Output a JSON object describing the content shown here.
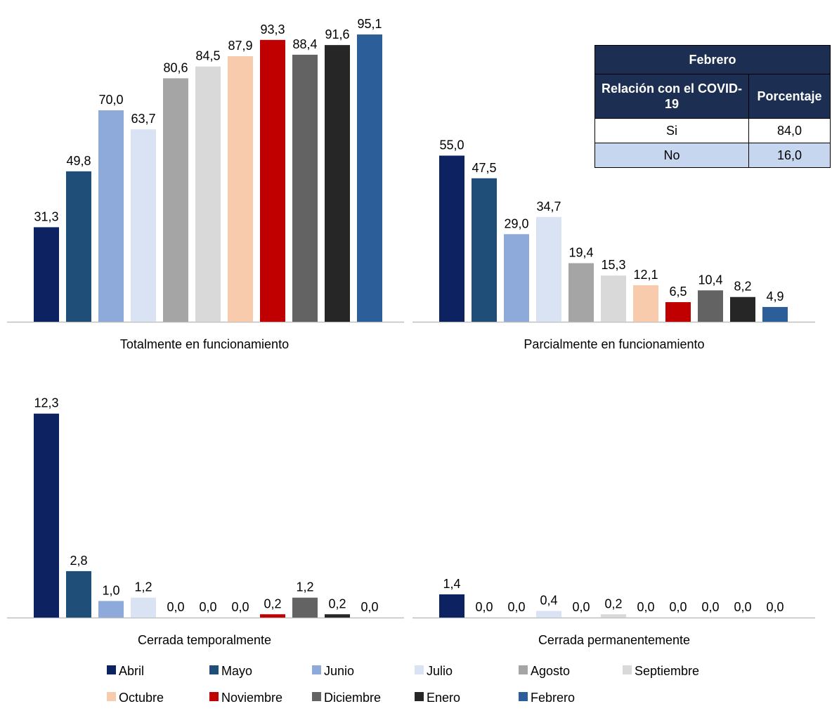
{
  "chart_data": {
    "type": "bar",
    "months": [
      "Abril",
      "Mayo",
      "Junio",
      "Julio",
      "Agosto",
      "Septiembre",
      "Octubre",
      "Noviembre",
      "Diciembre",
      "Enero",
      "Febrero"
    ],
    "colors": [
      "#0d2260",
      "#1f4e79",
      "#8eaadb",
      "#dae3f3",
      "#a5a5a5",
      "#d9d9d9",
      "#f8cbad",
      "#c00000",
      "#636363",
      "#262626",
      "#2c5f99"
    ],
    "panels": [
      {
        "label": "Totalmente en funcionamiento",
        "values": [
          31.3,
          49.8,
          70.0,
          63.7,
          80.6,
          84.5,
          87.9,
          93.3,
          88.4,
          91.6,
          95.1
        ],
        "value_labels": [
          "31,3",
          "49,8",
          "70,0",
          "63,7",
          "80,6",
          "84,5",
          "87,9",
          "93,3",
          "88,4",
          "91,6",
          "95,1"
        ]
      },
      {
        "label": "Parcialmente en funcionamiento",
        "values": [
          55.0,
          47.5,
          29.0,
          34.7,
          19.4,
          15.3,
          12.1,
          6.5,
          10.4,
          8.2,
          4.9
        ],
        "value_labels": [
          "55,0",
          "47,5",
          "29,0",
          "34,7",
          "19,4",
          "15,3",
          "12,1",
          "6,5",
          "10,4",
          "8,2",
          "4,9"
        ]
      },
      {
        "label": "Cerrada temporalmente",
        "values": [
          12.3,
          2.8,
          1.0,
          1.2,
          0.0,
          0.0,
          0.0,
          0.2,
          1.2,
          0.2,
          0.0
        ],
        "value_labels": [
          "12,3",
          "2,8",
          "1,0",
          "1,2",
          "0,0",
          "0,0",
          "0,0",
          "0,2",
          "1,2",
          "0,2",
          "0,0"
        ]
      },
      {
        "label": "Cerrada permanentemente",
        "values": [
          1.4,
          0.0,
          0.0,
          0.4,
          0.0,
          0.2,
          0.0,
          0.0,
          0.0,
          0.0,
          0.0
        ],
        "value_labels": [
          "1,4",
          "0,0",
          "0,0",
          "0,4",
          "0,0",
          "0,2",
          "0,0",
          "0,0",
          "0,0",
          "0,0",
          "0,0"
        ]
      }
    ],
    "legend_position": "bottom"
  },
  "table": {
    "title": "Febrero",
    "col1_header": "Relación con el COVID-19",
    "col2_header": "Porcentaje",
    "rows": [
      {
        "label": "Si",
        "value": "84,0"
      },
      {
        "label": "No",
        "value": "16,0"
      }
    ]
  }
}
